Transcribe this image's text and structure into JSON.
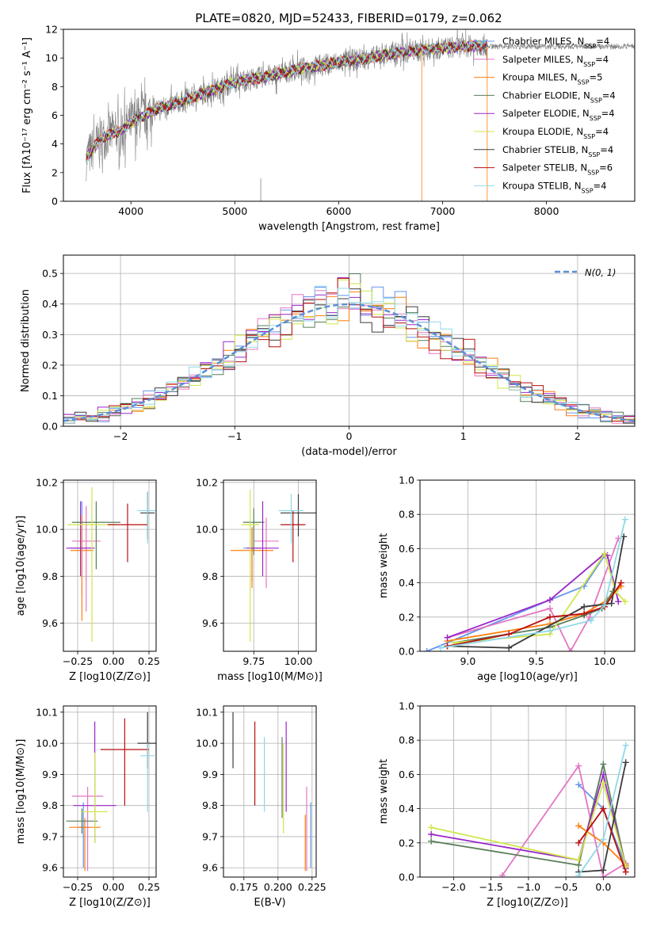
{
  "colors": {
    "Chabrier MILES": "#6495ed",
    "Salpeter MILES": "#e377c2",
    "Kroupa MILES": "#ff7f0e",
    "Chabrier ELODIE": "#5a7d5a",
    "Salpeter ELODIE": "#9a26c9",
    "Kroupa ELODIE": "#d0e64a",
    "Chabrier STELIB": "#3b3b3b",
    "Salpeter STELIB": "#b80f0f",
    "Kroupa STELIB": "#8fd8e8",
    "spectrum": "#808080",
    "normal": "#5b8fd6"
  },
  "chart_data": [
    {
      "id": "spectrum",
      "type": "line",
      "title": "PLATE=0820, MJD=52433, FIBERID=0179, z=0.062",
      "xlabel": "wavelength [Angstrom, rest frame]",
      "ylabel": "Flux [fλ10⁻¹⁷ erg cm⁻² s⁻¹ A⁻¹]",
      "xlim": [
        3350,
        8850
      ],
      "ylim": [
        0,
        12
      ],
      "xticks": [
        4000,
        5000,
        6000,
        7000,
        8000
      ],
      "yticks": [
        0,
        2,
        4,
        6,
        8,
        10,
        12
      ],
      "grid": false,
      "legend_position": "top-right",
      "continuum_x": [
        3570,
        3700,
        3800,
        3900,
        4000,
        4200,
        4500,
        4800,
        5000,
        5300,
        5600,
        6000,
        6300,
        6600,
        7000,
        7400
      ],
      "continuum_y": [
        3.0,
        4.3,
        4.7,
        4.9,
        5.5,
        6.3,
        7.0,
        7.8,
        8.3,
        8.7,
        9.2,
        9.7,
        10.0,
        10.4,
        10.7,
        10.9
      ],
      "models_end_x": 7430,
      "spectrum_end_x": 8850,
      "series": [
        {
          "name": "Chabrier MILES",
          "nssp": "4"
        },
        {
          "name": "Salpeter MILES",
          "nssp": "4"
        },
        {
          "name": "Kroupa MILES",
          "nssp": "5"
        },
        {
          "name": "Chabrier ELODIE",
          "nssp": "4"
        },
        {
          "name": "Salpeter ELODIE",
          "nssp": "4"
        },
        {
          "name": "Kroupa ELODIE",
          "nssp": "4"
        },
        {
          "name": "Chabrier STELIB",
          "nssp": "4"
        },
        {
          "name": "Salpeter STELIB",
          "nssp": "6"
        },
        {
          "name": "Kroupa STELIB",
          "nssp": "4"
        }
      ]
    },
    {
      "id": "residuals",
      "type": "histogram",
      "xlabel": "(data-model)/error",
      "ylabel": "Normed distribution",
      "xlim": [
        -2.5,
        2.5
      ],
      "ylim": [
        0,
        0.56
      ],
      "xticks": [
        -2,
        -1,
        0,
        1,
        2
      ],
      "yticks": [
        0.0,
        0.1,
        0.2,
        0.3,
        0.4,
        0.5
      ],
      "grid": true,
      "legend": "N(0, 1)",
      "legend_position": "top-right",
      "bin_width": 0.1
    },
    {
      "id": "age-vs-Z",
      "type": "errorbar",
      "xlabel": "Z [log10(Z/Z⊙)]",
      "ylabel": "age  [log10(age/yr)]",
      "xlim": [
        -0.35,
        0.3
      ],
      "ylim": [
        9.48,
        10.21
      ],
      "xticks": [
        -0.25,
        0.0,
        0.25
      ],
      "yticks": [
        9.6,
        9.8,
        10.0,
        10.2
      ],
      "grid": true,
      "points": [
        {
          "series": "Chabrier MILES",
          "x": -0.22,
          "xerr": 0.08,
          "y": 9.92,
          "yerr": [
            0.2,
            0.2
          ]
        },
        {
          "series": "Salpeter MILES",
          "x": -0.19,
          "xerr": 0.1,
          "y": 9.95,
          "yerr": [
            0.3,
            0.15
          ]
        },
        {
          "series": "Kroupa MILES",
          "x": -0.22,
          "xerr": 0.08,
          "y": 9.91,
          "yerr": [
            0.3,
            0.15
          ]
        },
        {
          "series": "Chabrier ELODIE",
          "x": -0.12,
          "xerr": 0.17,
          "y": 10.03,
          "yerr": [
            0.2,
            0.09
          ]
        },
        {
          "series": "Salpeter ELODIE",
          "x": -0.23,
          "xerr": 0.1,
          "y": 9.92,
          "yerr": [
            0.12,
            0.2
          ]
        },
        {
          "series": "Kroupa ELODIE",
          "x": -0.15,
          "xerr": 0.17,
          "y": 10.02,
          "yerr": [
            0.5,
            0.16
          ]
        },
        {
          "series": "Chabrier STELIB",
          "x": 0.24,
          "xerr": 0.05,
          "y": 10.07,
          "yerr": [
            0.11,
            0.09
          ]
        },
        {
          "series": "Salpeter STELIB",
          "x": 0.1,
          "xerr": 0.14,
          "y": 10.02,
          "yerr": [
            0.16,
            0.09
          ]
        },
        {
          "series": "Kroupa STELIB",
          "x": 0.24,
          "xerr": 0.07,
          "y": 10.08,
          "yerr": [
            0.14,
            0.08
          ]
        }
      ]
    },
    {
      "id": "age-vs-mass",
      "type": "errorbar",
      "xlabel": "mass [log10(M/M⊙)]",
      "ylabel": "",
      "xlim": [
        9.58,
        10.1
      ],
      "ylim": [
        9.48,
        10.21
      ],
      "xticks": [
        9.75,
        10.0
      ],
      "yticks": [
        9.6,
        9.8,
        10.0,
        10.2
      ],
      "grid": true,
      "points": [
        {
          "series": "Chabrier MILES",
          "x": 9.74,
          "xerr": 0.05,
          "y": 9.92,
          "yerr": [
            0.14,
            0.08
          ]
        },
        {
          "series": "Salpeter MILES",
          "x": 9.82,
          "xerr": 0.07,
          "y": 9.95,
          "yerr": [
            0.2,
            0.1
          ]
        },
        {
          "series": "Kroupa MILES",
          "x": 9.74,
          "xerr": 0.12,
          "y": 9.91,
          "yerr": [
            0.16,
            0.1
          ]
        },
        {
          "series": "Chabrier ELODIE",
          "x": 9.75,
          "xerr": 0.06,
          "y": 10.03,
          "yerr": [
            0.14,
            0.06
          ]
        },
        {
          "series": "Salpeter ELODIE",
          "x": 9.8,
          "xerr": 0.09,
          "y": 9.92,
          "yerr": [
            0.12,
            0.2
          ]
        },
        {
          "series": "Kroupa ELODIE",
          "x": 9.73,
          "xerr": 0.05,
          "y": 10.02,
          "yerr": [
            0.5,
            0.15
          ]
        },
        {
          "series": "Chabrier STELIB",
          "x": 10.0,
          "xerr": 0.1,
          "y": 10.07,
          "yerr": [
            0.1,
            0.08
          ]
        },
        {
          "series": "Salpeter STELIB",
          "x": 9.97,
          "xerr": 0.07,
          "y": 10.02,
          "yerr": [
            0.16,
            0.06
          ]
        },
        {
          "series": "Kroupa STELIB",
          "x": 9.96,
          "xerr": 0.07,
          "y": 10.08,
          "yerr": [
            0.14,
            0.07
          ]
        }
      ]
    },
    {
      "id": "mass-weight-vs-age",
      "type": "line",
      "xlabel": "age  [log10(age/yr)]",
      "ylabel": "mass weight",
      "xlim": [
        8.65,
        10.22
      ],
      "ylim": [
        0.0,
        1.0
      ],
      "xticks": [
        9.0,
        9.5,
        10.0
      ],
      "yticks": [
        0.0,
        0.2,
        0.4,
        0.6,
        0.8,
        1.0
      ],
      "grid": true,
      "series": [
        {
          "name": "Chabrier MILES",
          "x": [
            8.7,
            9.6,
            9.85,
            10.0
          ],
          "y": [
            0.0,
            0.3,
            0.38,
            0.56
          ]
        },
        {
          "name": "Salpeter MILES",
          "x": [
            8.85,
            9.6,
            9.75,
            9.89,
            10.1
          ],
          "y": [
            0.08,
            0.25,
            0.0,
            0.2,
            0.66
          ]
        },
        {
          "name": "Kroupa MILES",
          "x": [
            8.85,
            9.6,
            9.85,
            10.02,
            10.12
          ],
          "y": [
            0.06,
            0.16,
            0.22,
            0.3,
            0.38
          ]
        },
        {
          "name": "Chabrier ELODIE",
          "x": [
            8.9,
            9.6,
            9.85,
            9.98,
            10.06
          ],
          "y": [
            0.05,
            0.14,
            0.21,
            0.25,
            0.35
          ]
        },
        {
          "name": "Salpeter ELODIE",
          "x": [
            8.85,
            9.6,
            10.0,
            10.02,
            10.1
          ],
          "y": [
            0.08,
            0.3,
            0.57,
            0.56,
            0.29
          ]
        },
        {
          "name": "Kroupa ELODIE",
          "x": [
            8.9,
            9.6,
            10.0,
            10.08,
            10.15
          ],
          "y": [
            0.05,
            0.1,
            0.57,
            0.35,
            0.29
          ]
        },
        {
          "name": "Chabrier STELIB",
          "x": [
            8.85,
            9.3,
            9.85,
            10.05,
            10.14
          ],
          "y": [
            0.03,
            0.02,
            0.26,
            0.28,
            0.67
          ]
        },
        {
          "name": "Salpeter STELIB",
          "x": [
            8.85,
            9.3,
            9.6,
            9.85,
            10.0,
            10.12
          ],
          "y": [
            0.03,
            0.1,
            0.2,
            0.22,
            0.26,
            0.4
          ]
        },
        {
          "name": "Kroupa STELIB",
          "x": [
            8.8,
            9.6,
            9.9,
            10.0,
            10.15
          ],
          "y": [
            0.02,
            0.12,
            0.18,
            0.27,
            0.77
          ]
        }
      ]
    },
    {
      "id": "mass-vs-Z",
      "type": "errorbar",
      "xlabel": "Z [log10(Z/Z⊙)]",
      "ylabel": "mass [log10(M/M⊙)]",
      "xlim": [
        -0.35,
        0.3
      ],
      "ylim": [
        9.57,
        10.12
      ],
      "xticks": [
        -0.25,
        0.0,
        0.25
      ],
      "yticks": [
        9.6,
        9.7,
        9.8,
        9.9,
        10.0,
        10.1
      ],
      "grid": true,
      "points": [
        {
          "series": "Chabrier MILES",
          "x": -0.21,
          "xerr": 0.04,
          "y": 9.73,
          "yerr": [
            0.13,
            0.08
          ]
        },
        {
          "series": "Salpeter MILES",
          "x": -0.18,
          "xerr": 0.11,
          "y": 9.83,
          "yerr": [
            0.24,
            0.03
          ]
        },
        {
          "series": "Kroupa MILES",
          "x": -0.2,
          "xerr": 0.11,
          "y": 9.73,
          "yerr": [
            0.14,
            0.03
          ]
        },
        {
          "series": "Chabrier ELODIE",
          "x": -0.22,
          "xerr": 0.11,
          "y": 9.75,
          "yerr": [
            0.04,
            0.04
          ]
        },
        {
          "series": "Salpeter ELODIE",
          "x": -0.13,
          "xerr": 0.15,
          "y": 9.8,
          "yerr": [
            0.12,
            0.27
          ]
        },
        {
          "series": "Kroupa ELODIE",
          "x": -0.13,
          "xerr": 0.09,
          "y": 9.78,
          "yerr": [
            0.1,
            0.19
          ]
        },
        {
          "series": "Chabrier STELIB",
          "x": 0.24,
          "xerr": 0.07,
          "y": 10.0,
          "yerr": [
            0.08,
            0.1
          ]
        },
        {
          "series": "Salpeter STELIB",
          "x": 0.08,
          "xerr": 0.17,
          "y": 9.98,
          "yerr": [
            0.18,
            0.1
          ]
        },
        {
          "series": "Kroupa STELIB",
          "x": 0.24,
          "xerr": 0.05,
          "y": 9.96,
          "yerr": [
            0.18,
            0.04
          ]
        }
      ]
    },
    {
      "id": "mass-vs-ebv",
      "type": "errorbar",
      "xlabel": "E(B-V)",
      "ylabel": "",
      "xlim": [
        0.16,
        0.228
      ],
      "ylim": [
        9.57,
        10.12
      ],
      "xticks": [
        0.175,
        0.2,
        0.225
      ],
      "yticks": [
        9.6,
        9.7,
        9.8,
        9.9,
        10.0,
        10.1
      ],
      "grid": true,
      "points": [
        {
          "series": "Chabrier MILES",
          "x": 0.224,
          "xerr": 0,
          "y": 9.73,
          "yerr": [
            0.13,
            0.08
          ]
        },
        {
          "series": "Salpeter MILES",
          "x": 0.221,
          "xerr": 0,
          "y": 9.78,
          "yerr": [
            0.19,
            0.08
          ]
        },
        {
          "series": "Kroupa MILES",
          "x": 0.22,
          "xerr": 0,
          "y": 9.73,
          "yerr": [
            0.14,
            0.04
          ]
        },
        {
          "series": "Chabrier ELODIE",
          "x": 0.203,
          "xerr": 0,
          "y": 9.96,
          "yerr": [
            0.2,
            0.06
          ]
        },
        {
          "series": "Salpeter ELODIE",
          "x": 0.206,
          "xerr": 0,
          "y": 9.9,
          "yerr": [
            0.12,
            0.17
          ]
        },
        {
          "series": "Kroupa ELODIE",
          "x": 0.204,
          "xerr": 0,
          "y": 9.85,
          "yerr": [
            0.14,
            0.15
          ]
        },
        {
          "series": "Chabrier STELIB",
          "x": 0.167,
          "xerr": 0,
          "y": 10.0,
          "yerr": [
            0.08,
            0.1
          ]
        },
        {
          "series": "Salpeter STELIB",
          "x": 0.183,
          "xerr": 0,
          "y": 9.94,
          "yerr": [
            0.14,
            0.13
          ]
        },
        {
          "series": "Kroupa STELIB",
          "x": 0.19,
          "xerr": 0,
          "y": 9.9,
          "yerr": [
            0.12,
            0.12
          ]
        }
      ]
    },
    {
      "id": "mass-weight-vs-Z",
      "type": "line",
      "xlabel": "Z [log10(Z/Z⊙)]",
      "ylabel": "mass weight",
      "xlim": [
        -2.45,
        0.42
      ],
      "ylim": [
        0.0,
        1.0
      ],
      "xticks": [
        -2.0,
        -1.5,
        -1.0,
        -0.5,
        0.0
      ],
      "yticks": [
        0.0,
        0.2,
        0.4,
        0.6,
        0.8,
        1.0
      ],
      "grid": true,
      "series": [
        {
          "name": "Chabrier MILES",
          "x": [
            -0.33,
            0.0,
            0.3
          ],
          "y": [
            0.54,
            0.4,
            0.06
          ]
        },
        {
          "name": "Salpeter MILES",
          "x": [
            -1.35,
            -0.33,
            0.0,
            0.3
          ],
          "y": [
            0.01,
            0.65,
            0.0,
            0.08
          ]
        },
        {
          "name": "Kroupa MILES",
          "x": [
            -0.33,
            0.0,
            0.3
          ],
          "y": [
            0.3,
            0.2,
            0.07
          ]
        },
        {
          "name": "Chabrier ELODIE",
          "x": [
            -2.3,
            -0.33,
            0.0,
            0.3
          ],
          "y": [
            0.21,
            0.07,
            0.66,
            0.06
          ]
        },
        {
          "name": "Salpeter ELODIE",
          "x": [
            -2.3,
            -0.33,
            0.0,
            0.3
          ],
          "y": [
            0.25,
            0.1,
            0.6,
            0.05
          ]
        },
        {
          "name": "Kroupa ELODIE",
          "x": [
            -2.3,
            -0.33,
            0.0,
            0.3
          ],
          "y": [
            0.29,
            0.1,
            0.55,
            0.06
          ]
        },
        {
          "name": "Chabrier STELIB",
          "x": [
            -0.33,
            0.0,
            0.3
          ],
          "y": [
            0.03,
            0.04,
            0.67
          ]
        },
        {
          "name": "Salpeter STELIB",
          "x": [
            -0.33,
            0.0,
            0.3
          ],
          "y": [
            0.2,
            0.4,
            0.03
          ]
        },
        {
          "name": "Kroupa STELIB",
          "x": [
            -0.33,
            0.0,
            0.3
          ],
          "y": [
            0.01,
            0.22,
            0.77
          ]
        }
      ]
    }
  ]
}
